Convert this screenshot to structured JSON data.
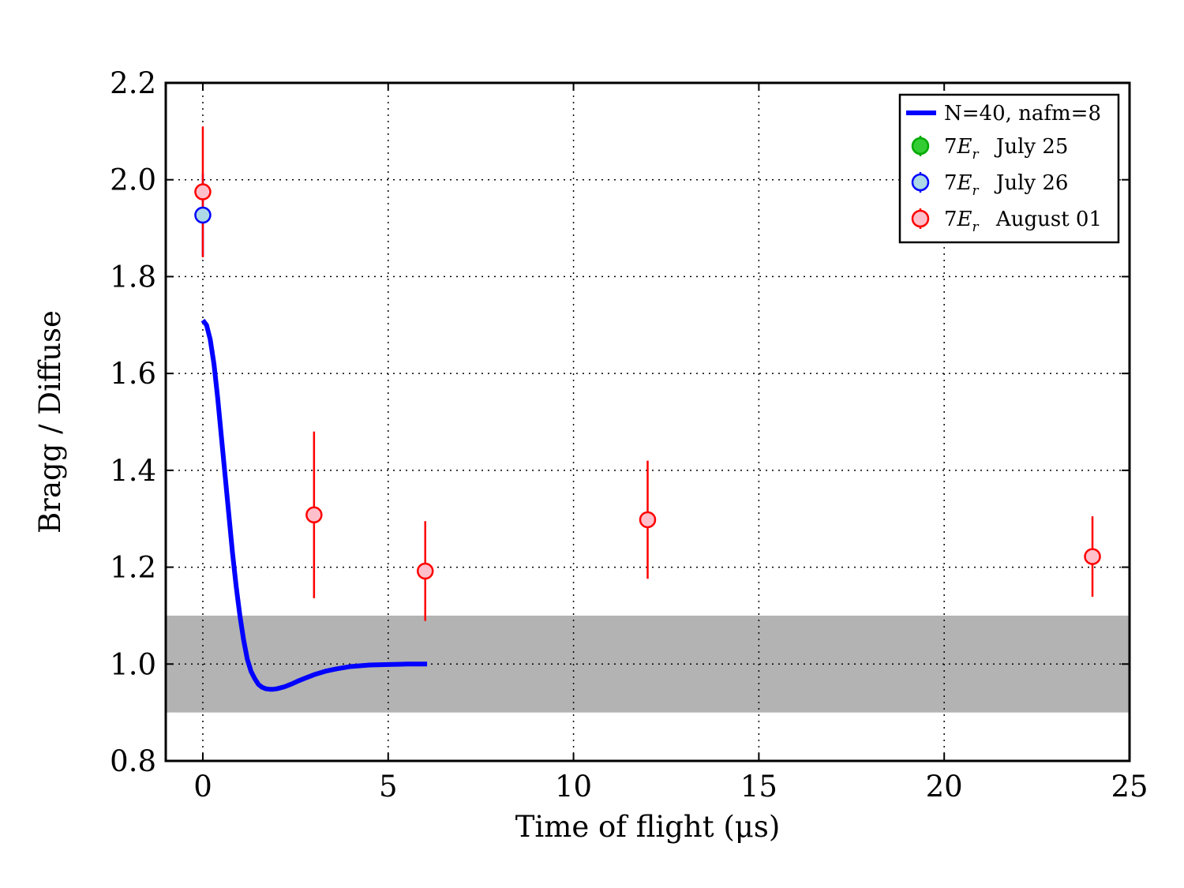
{
  "chart_data": {
    "type": "scatter",
    "xlabel": "Time of flight (μs)",
    "ylabel": "Bragg / Diffuse",
    "xlim": [
      -1,
      25
    ],
    "ylim": [
      0.8,
      2.2
    ],
    "xticks": [
      "0",
      "5",
      "10",
      "15",
      "20",
      "25"
    ],
    "yticks": [
      "0.8",
      "1.0",
      "1.2",
      "1.4",
      "1.6",
      "1.8",
      "2.0",
      "2.2"
    ],
    "grid": true,
    "legend_position": "top-right",
    "band": {
      "ymin": 0.9,
      "ymax": 1.1,
      "color": "#b3b3b3"
    },
    "series": [
      {
        "name": "N=40, nafm=8",
        "kind": "line",
        "color": "#0000ff",
        "x": [
          0.0,
          0.1,
          0.2,
          0.3,
          0.4,
          0.5,
          0.6,
          0.7,
          0.8,
          0.9,
          1.0,
          1.1,
          1.2,
          1.3,
          1.4,
          1.5,
          1.6,
          1.7,
          1.8,
          1.9,
          2.0,
          2.2,
          2.4,
          2.6,
          2.8,
          3.0,
          3.3,
          3.6,
          4.0,
          4.5,
          5.0,
          5.5,
          6.05
        ],
        "y": [
          1.71,
          1.7,
          1.67,
          1.62,
          1.55,
          1.47,
          1.39,
          1.31,
          1.23,
          1.16,
          1.1,
          1.05,
          1.01,
          0.985,
          0.97,
          0.958,
          0.952,
          0.949,
          0.948,
          0.948,
          0.949,
          0.953,
          0.959,
          0.966,
          0.972,
          0.978,
          0.985,
          0.99,
          0.995,
          0.998,
          0.999,
          1.0,
          1.0
        ]
      },
      {
        "name": "7E_r  July 25",
        "legend_main": "7",
        "legend_math": "E",
        "legend_sub": "r",
        "legend_suffix": "July 25",
        "kind": "errorbar",
        "color": "#00aa00",
        "fill": "#33cc33",
        "points": []
      },
      {
        "name": "7E_r  July 26",
        "legend_main": "7",
        "legend_math": "E",
        "legend_sub": "r",
        "legend_suffix": "July 26",
        "kind": "errorbar",
        "color": "#0000ff",
        "fill": "#add8e6",
        "points": [
          {
            "x": 0.0,
            "y": 1.927,
            "yerr": 0.085
          }
        ]
      },
      {
        "name": "7E_r  August 01",
        "legend_main": "7",
        "legend_math": "E",
        "legend_sub": "r",
        "legend_suffix": "August 01",
        "kind": "errorbar",
        "color": "#ff0000",
        "fill": "#ffc0cb",
        "points": [
          {
            "x": 0.0,
            "y": 1.975,
            "yerr": 0.135
          },
          {
            "x": 3.0,
            "y": 1.308,
            "yerr": 0.172
          },
          {
            "x": 6.0,
            "y": 1.192,
            "yerr": 0.103
          },
          {
            "x": 12.0,
            "y": 1.298,
            "yerr": 0.122
          },
          {
            "x": 24.0,
            "y": 1.222,
            "yerr": 0.083
          }
        ]
      }
    ]
  }
}
